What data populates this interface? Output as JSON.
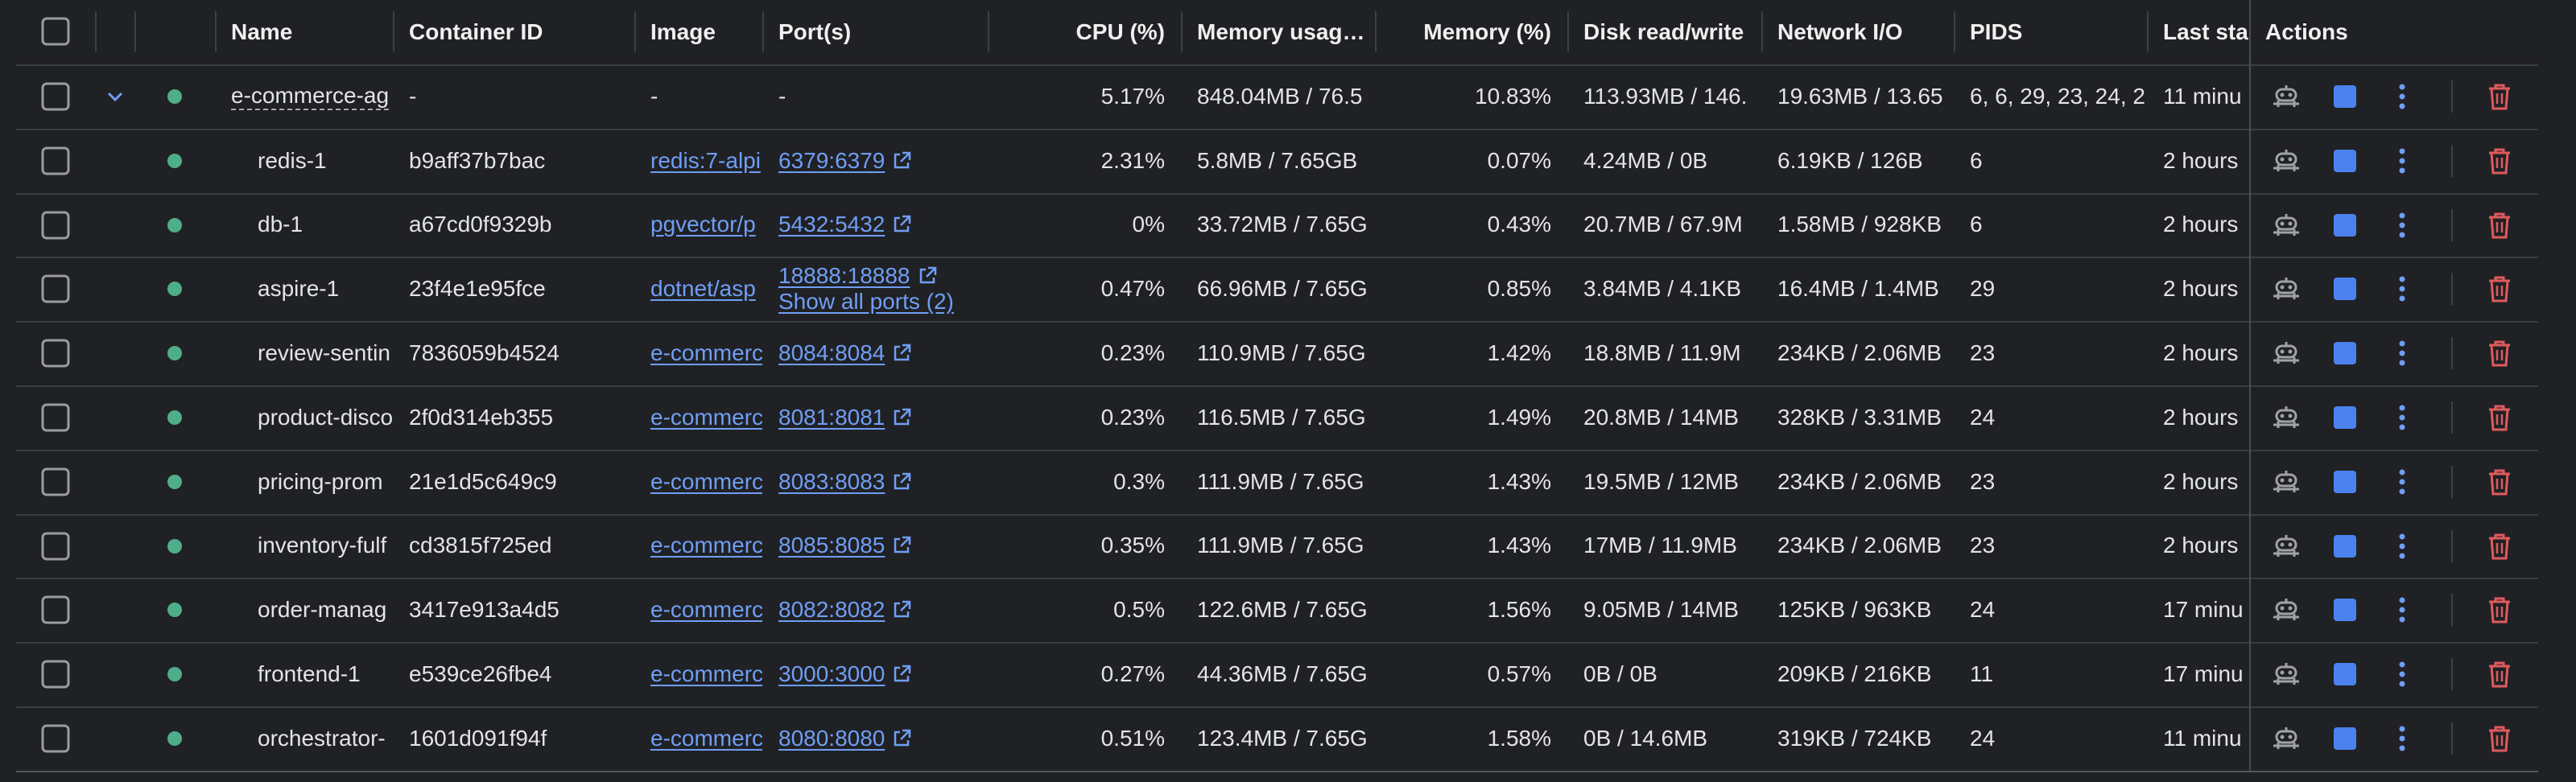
{
  "header": [
    "Name",
    "Container ID",
    "Image",
    "Port(s)",
    "CPU (%)",
    "Memory usag…",
    "Memory (%)",
    "Disk read/write",
    "Network I/O",
    "PIDS",
    "Last sta",
    "Actions"
  ],
  "group": {
    "name": "e-commerce-ag",
    "id": "-",
    "image": "-",
    "ports": [
      "-"
    ],
    "cpu": "5.17%",
    "mem": "848.04MB / 76.5",
    "mem_pct": "10.83%",
    "disk": "113.93MB / 146.",
    "net": "19.63MB / 13.65",
    "pids": "6, 6, 29, 23, 24, 2",
    "started": "11 minu"
  },
  "containers": [
    {
      "name": "redis-1",
      "id": "b9aff37b7bac",
      "image": "redis:7-alpi",
      "ports": [
        "6379:6379"
      ],
      "cpu": "2.31%",
      "mem": "5.8MB / 7.65GB",
      "mem_pct": "0.07%",
      "disk": "4.24MB / 0B",
      "net": "6.19KB / 126B",
      "pids": "6",
      "started": "2 hours"
    },
    {
      "name": "db-1",
      "id": "a67cd0f9329b",
      "image": "pgvector/p",
      "ports": [
        "5432:5432"
      ],
      "cpu": "0%",
      "mem": "33.72MB / 7.65G",
      "mem_pct": "0.43%",
      "disk": "20.7MB / 67.9M",
      "net": "1.58MB / 928KB",
      "pids": "6",
      "started": "2 hours"
    },
    {
      "name": "aspire-1",
      "id": "23f4e1e95fce",
      "image": "dotnet/asp",
      "ports": [
        "18888:18888",
        "Show all ports (2)"
      ],
      "cpu": "0.47%",
      "mem": "66.96MB / 7.65G",
      "mem_pct": "0.85%",
      "disk": "3.84MB / 4.1KB",
      "net": "16.4MB / 1.4MB",
      "pids": "29",
      "started": "2 hours"
    },
    {
      "name": "review-sentin",
      "id": "7836059b4524",
      "image": "e-commerc",
      "ports": [
        "8084:8084"
      ],
      "cpu": "0.23%",
      "mem": "110.9MB / 7.65G",
      "mem_pct": "1.42%",
      "disk": "18.8MB / 11.9M",
      "net": "234KB / 2.06MB",
      "pids": "23",
      "started": "2 hours"
    },
    {
      "name": "product-disco",
      "id": "2f0d314eb355",
      "image": "e-commerc",
      "ports": [
        "8081:8081"
      ],
      "cpu": "0.23%",
      "mem": "116.5MB / 7.65G",
      "mem_pct": "1.49%",
      "disk": "20.8MB / 14MB",
      "net": "328KB / 3.31MB",
      "pids": "24",
      "started": "2 hours"
    },
    {
      "name": "pricing-prom",
      "id": "21e1d5c649c9",
      "image": "e-commerc",
      "ports": [
        "8083:8083"
      ],
      "cpu": "0.3%",
      "mem": "111.9MB / 7.65G",
      "mem_pct": "1.43%",
      "disk": "19.5MB / 12MB",
      "net": "234KB / 2.06MB",
      "pids": "23",
      "started": "2 hours"
    },
    {
      "name": "inventory-fulf",
      "id": "cd3815f725ed",
      "image": "e-commerc",
      "ports": [
        "8085:8085"
      ],
      "cpu": "0.35%",
      "mem": "111.9MB / 7.65G",
      "mem_pct": "1.43%",
      "disk": "17MB / 11.9MB",
      "net": "234KB / 2.06MB",
      "pids": "23",
      "started": "2 hours"
    },
    {
      "name": "order-manag",
      "id": "3417e913a4d5",
      "image": "e-commerc",
      "ports": [
        "8082:8082"
      ],
      "cpu": "0.5%",
      "mem": "122.6MB / 7.65G",
      "mem_pct": "1.56%",
      "disk": "9.05MB / 14MB",
      "net": "125KB / 963KB",
      "pids": "24",
      "started": "17 minu"
    },
    {
      "name": "frontend-1",
      "id": "e539ce26fbe4",
      "image": "e-commerc",
      "ports": [
        "3000:3000"
      ],
      "cpu": "0.27%",
      "mem": "44.36MB / 7.65G",
      "mem_pct": "0.57%",
      "disk": "0B / 0B",
      "net": "209KB / 216KB",
      "pids": "11",
      "started": "17 minu"
    },
    {
      "name": "orchestrator-",
      "id": "1601d091f94f",
      "image": "e-commerc",
      "ports": [
        "8080:8080"
      ],
      "cpu": "0.51%",
      "mem": "123.4MB / 7.65G",
      "mem_pct": "1.58%",
      "disk": "0B / 14.6MB",
      "net": "319KB / 724KB",
      "pids": "24",
      "started": "11 minu"
    }
  ]
}
